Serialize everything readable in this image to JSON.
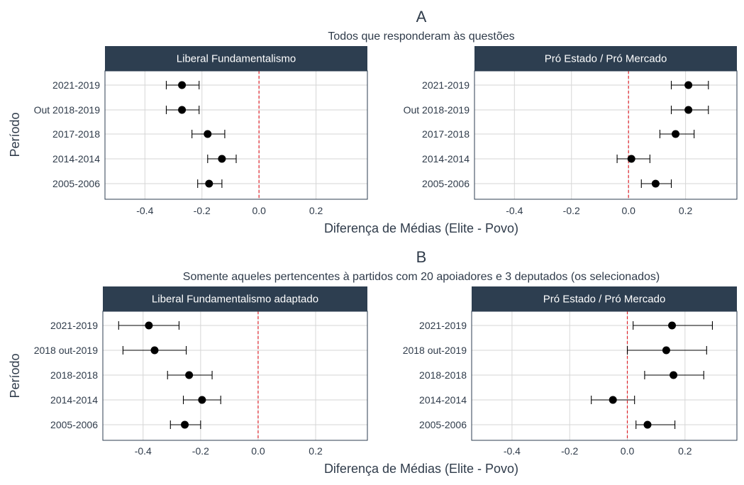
{
  "chart_data": [
    {
      "label": "A",
      "subtitle": "Todos que responderam às questões",
      "xlabel": "Diferença de Médias (Elite - Povo)",
      "ylabel": "Período",
      "x_ticks": [
        "-0.4",
        "-0.2",
        "0.0",
        "0.2"
      ],
      "tick_values": [
        -0.4,
        -0.2,
        0.0,
        0.2
      ],
      "panels": [
        {
          "type": "scatter",
          "strip": "Liberal Fundamentalismo",
          "xlim": [
            -0.54,
            0.38
          ],
          "reference_line": 0,
          "categories": [
            "2021-2019",
            "Out 2018-2019",
            "2017-2018",
            "2014-2014",
            "2005-2006"
          ],
          "estimate": [
            -0.27,
            -0.27,
            -0.18,
            -0.13,
            -0.175
          ],
          "lower": [
            -0.325,
            -0.325,
            -0.235,
            -0.18,
            -0.215
          ],
          "upper": [
            -0.21,
            -0.21,
            -0.12,
            -0.08,
            -0.13
          ]
        },
        {
          "type": "scatter",
          "strip": "Pró Estado / Pró Mercado",
          "xlim": [
            -0.54,
            0.38
          ],
          "reference_line": 0,
          "categories": [
            "2021-2019",
            "Out 2018-2019",
            "2017-2018",
            "2014-2014",
            "2005-2006"
          ],
          "estimate": [
            0.21,
            0.21,
            0.165,
            0.01,
            0.095
          ],
          "lower": [
            0.15,
            0.15,
            0.11,
            -0.04,
            0.045
          ],
          "upper": [
            0.28,
            0.28,
            0.23,
            0.075,
            0.15
          ]
        }
      ]
    },
    {
      "label": "B",
      "subtitle": "Somente aqueles pertencentes à partidos com 20 apoiadores e 3 deputados (os selecionados)",
      "xlabel": "Diferença de Médias (Elite - Povo)",
      "ylabel": "Período",
      "x_ticks": [
        "-0.4",
        "-0.2",
        "0.0",
        "0.2"
      ],
      "tick_values": [
        -0.4,
        -0.2,
        0.0,
        0.2
      ],
      "panels": [
        {
          "type": "scatter",
          "strip": "Liberal Fundamentalismo adaptado",
          "xlim": [
            -0.54,
            0.38
          ],
          "reference_line": 0,
          "categories": [
            "2021-2019",
            "2018 out-2019",
            "2018-2018",
            "2014-2014",
            "2005-2006"
          ],
          "estimate": [
            -0.38,
            -0.36,
            -0.24,
            -0.195,
            -0.255
          ],
          "lower": [
            -0.485,
            -0.47,
            -0.315,
            -0.26,
            -0.305
          ],
          "upper": [
            -0.275,
            -0.25,
            -0.16,
            -0.13,
            -0.2
          ]
        },
        {
          "type": "scatter",
          "strip": "Pró Estado / Pró Mercado",
          "xlim": [
            -0.54,
            0.38
          ],
          "reference_line": 0,
          "categories": [
            "2021-2019",
            "2018 out-2019",
            "2018-2018",
            "2014-2014",
            "2005-2006"
          ],
          "estimate": [
            0.155,
            0.135,
            0.16,
            -0.05,
            0.07
          ],
          "lower": [
            0.02,
            0.0,
            0.06,
            -0.125,
            0.03
          ],
          "upper": [
            0.295,
            0.275,
            0.265,
            0.025,
            0.165
          ]
        }
      ]
    }
  ]
}
